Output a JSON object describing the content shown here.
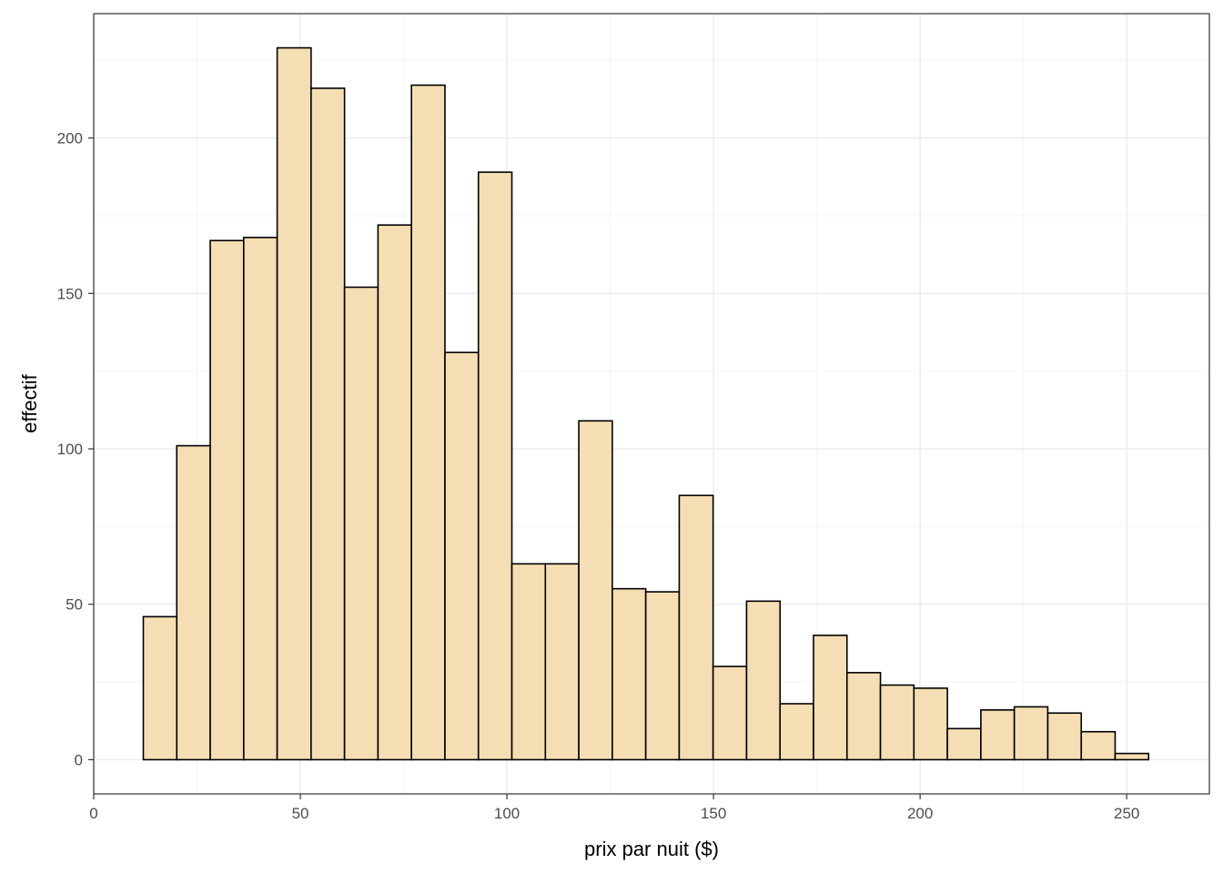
{
  "chart_data": {
    "type": "bar",
    "title": "",
    "xlabel": "prix par nuit ($)",
    "ylabel": "effectif",
    "xlim": [
      0,
      270
    ],
    "ylim": [
      -11,
      240
    ],
    "x_ticks": [
      0,
      50,
      100,
      150,
      200,
      250
    ],
    "y_ticks": [
      0,
      50,
      100,
      150,
      200
    ],
    "grid": true,
    "bin_edges": [
      12,
      20.1,
      28.2,
      36.3,
      44.4,
      52.6,
      60.7,
      68.8,
      76.9,
      85.0,
      93.1,
      101.2,
      109.3,
      117.4,
      125.5,
      133.6,
      141.7,
      149.9,
      158.0,
      166.1,
      174.2,
      182.3,
      190.4,
      198.5,
      206.6,
      214.7,
      222.8,
      230.9,
      239.0,
      247.2,
      255.3
    ],
    "values": [
      46,
      101,
      167,
      168,
      229,
      216,
      152,
      172,
      217,
      131,
      189,
      63,
      63,
      109,
      55,
      54,
      85,
      30,
      51,
      18,
      40,
      28,
      24,
      23,
      10,
      16,
      17,
      15,
      9,
      2
    ],
    "colors": {
      "bar_fill": "#F5DEB3",
      "bar_stroke": "#000000",
      "grid_major": "#EBEBEB",
      "grid_minor": "#F5F5F5",
      "panel_border": "#333333"
    }
  }
}
